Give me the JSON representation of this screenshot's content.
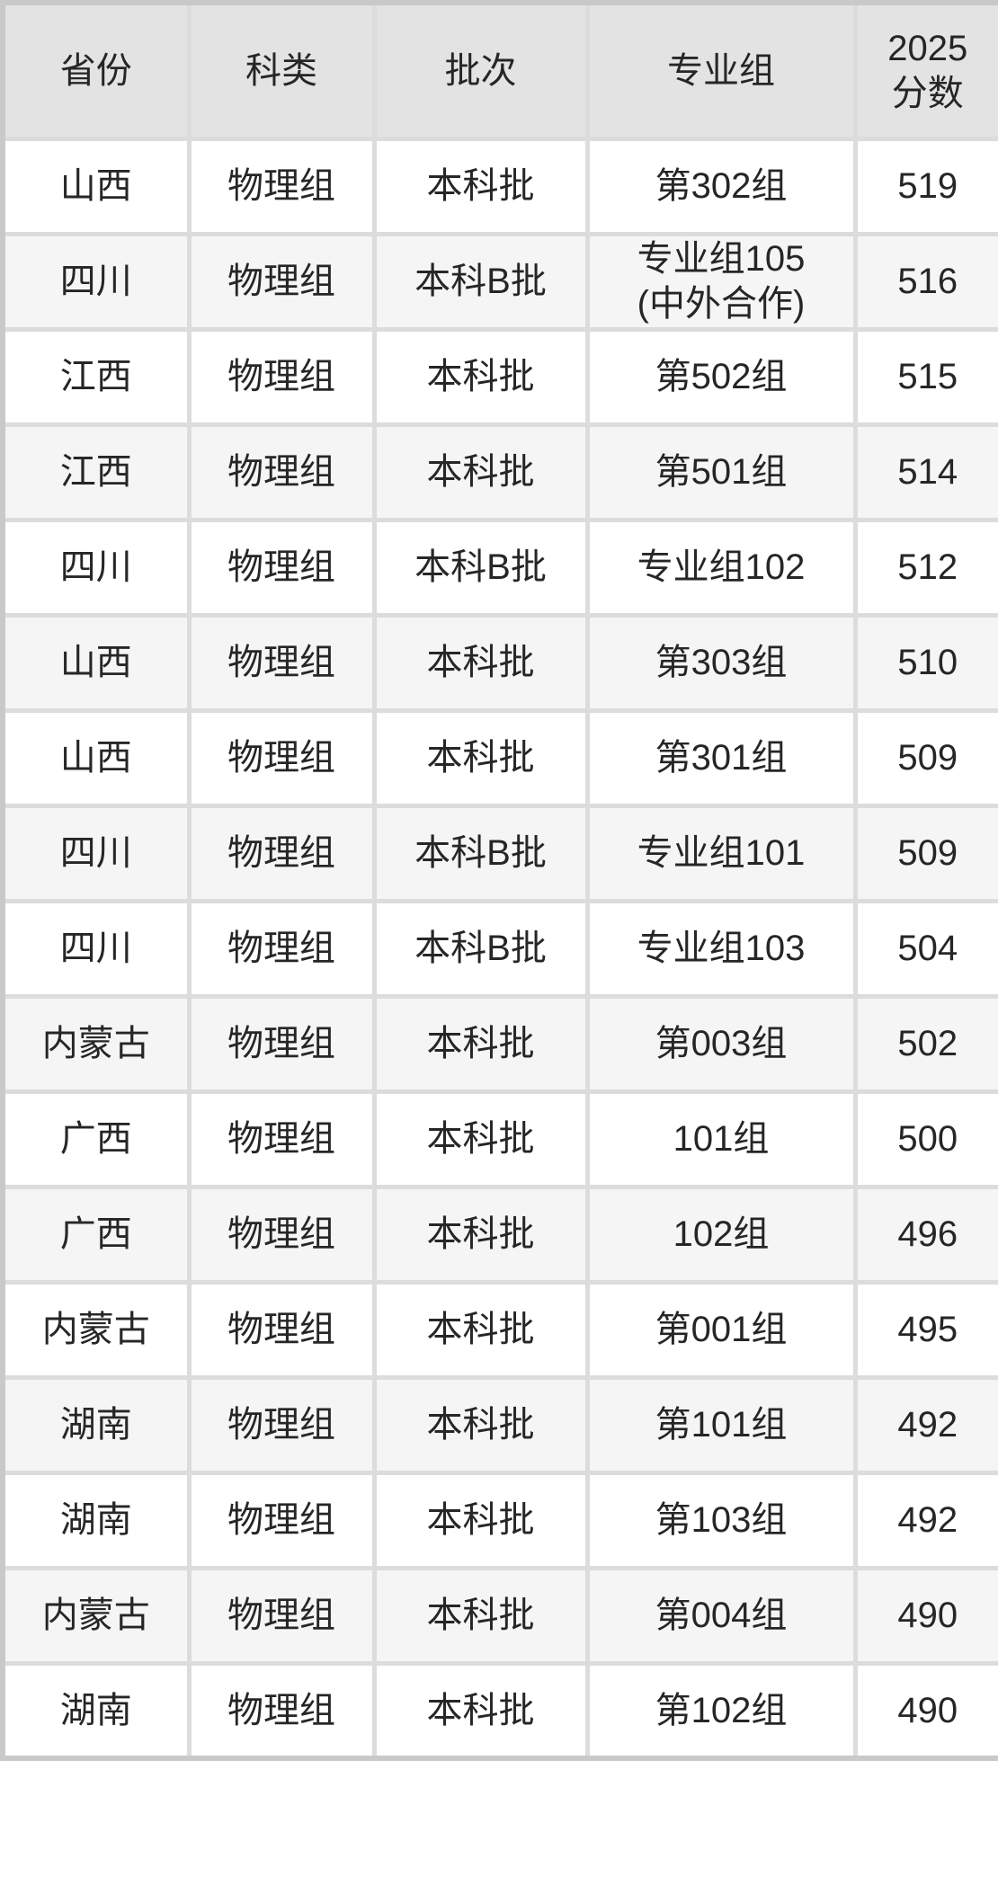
{
  "colors": {
    "header_bg": "#e3e3e3",
    "row_bg": "#ffffff",
    "row_alt_bg": "#f5f5f6",
    "border_inner": "#dcdcdc",
    "border_outer": "#c9c9c9",
    "text": "#262626"
  },
  "table": {
    "columns": [
      {
        "key": "province",
        "label": "省份"
      },
      {
        "key": "subject",
        "label": "科类"
      },
      {
        "key": "batch",
        "label": "批次"
      },
      {
        "key": "group",
        "label": "专业组"
      },
      {
        "key": "score",
        "label": "2025\n分数"
      }
    ],
    "rows": [
      {
        "province": "山西",
        "subject": "物理组",
        "batch": "本科批",
        "group": "第302组",
        "score": "519"
      },
      {
        "province": "四川",
        "subject": "物理组",
        "batch": "本科B批",
        "group": "专业组105\n(中外合作)",
        "score": "516"
      },
      {
        "province": "江西",
        "subject": "物理组",
        "batch": "本科批",
        "group": "第502组",
        "score": "515"
      },
      {
        "province": "江西",
        "subject": "物理组",
        "batch": "本科批",
        "group": "第501组",
        "score": "514"
      },
      {
        "province": "四川",
        "subject": "物理组",
        "batch": "本科B批",
        "group": "专业组102",
        "score": "512"
      },
      {
        "province": "山西",
        "subject": "物理组",
        "batch": "本科批",
        "group": "第303组",
        "score": "510"
      },
      {
        "province": "山西",
        "subject": "物理组",
        "batch": "本科批",
        "group": "第301组",
        "score": "509"
      },
      {
        "province": "四川",
        "subject": "物理组",
        "batch": "本科B批",
        "group": "专业组101",
        "score": "509"
      },
      {
        "province": "四川",
        "subject": "物理组",
        "batch": "本科B批",
        "group": "专业组103",
        "score": "504"
      },
      {
        "province": "内蒙古",
        "subject": "物理组",
        "batch": "本科批",
        "group": "第003组",
        "score": "502"
      },
      {
        "province": "广西",
        "subject": "物理组",
        "batch": "本科批",
        "group": "101组",
        "score": "500"
      },
      {
        "province": "广西",
        "subject": "物理组",
        "batch": "本科批",
        "group": "102组",
        "score": "496"
      },
      {
        "province": "内蒙古",
        "subject": "物理组",
        "batch": "本科批",
        "group": "第001组",
        "score": "495"
      },
      {
        "province": "湖南",
        "subject": "物理组",
        "batch": "本科批",
        "group": "第101组",
        "score": "492"
      },
      {
        "province": "湖南",
        "subject": "物理组",
        "batch": "本科批",
        "group": "第103组",
        "score": "492"
      },
      {
        "province": "内蒙古",
        "subject": "物理组",
        "batch": "本科批",
        "group": "第004组",
        "score": "490"
      },
      {
        "province": "湖南",
        "subject": "物理组",
        "batch": "本科批",
        "group": "第102组",
        "score": "490"
      }
    ]
  }
}
